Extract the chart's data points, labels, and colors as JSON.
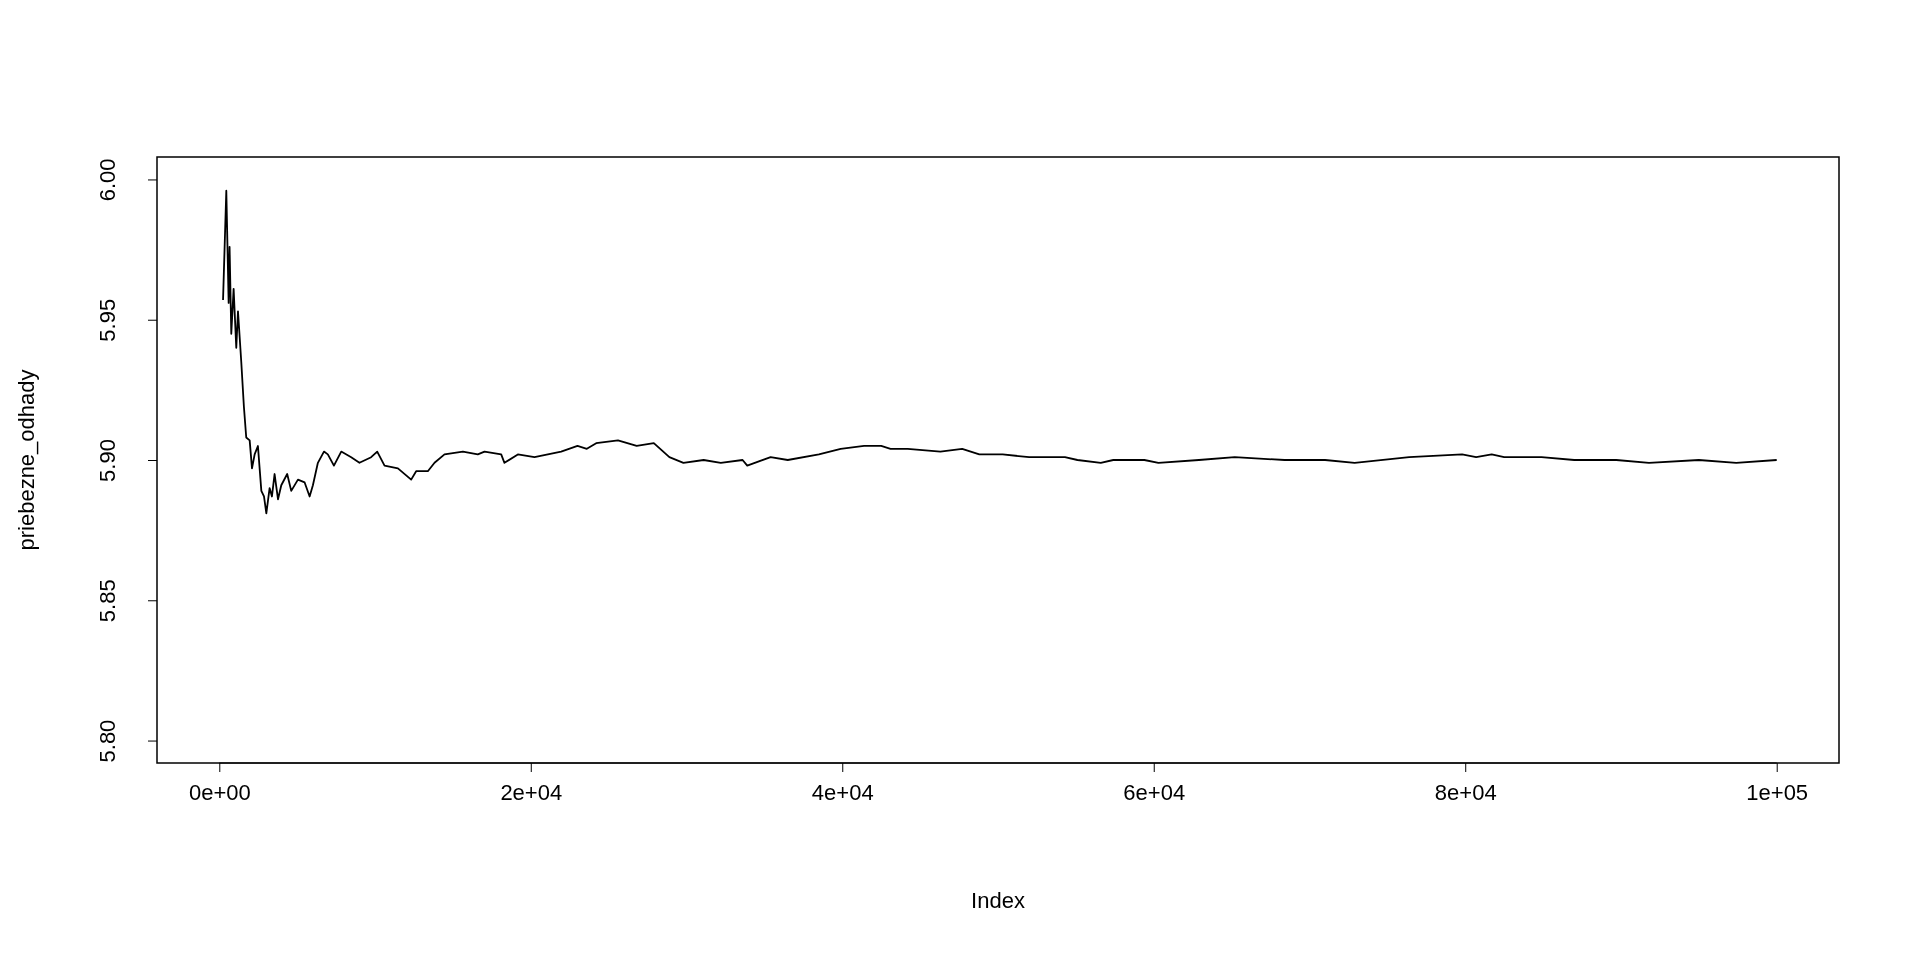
{
  "chart_data": {
    "type": "line",
    "xlabel": "Index",
    "ylabel": "priebezne_odhady",
    "xlim": [
      -4000,
      104000
    ],
    "ylim": [
      5.792,
      6.008
    ],
    "xticks": [
      {
        "value": 0,
        "label": "0e+00"
      },
      {
        "value": 20000,
        "label": "2e+04"
      },
      {
        "value": 40000,
        "label": "4e+04"
      },
      {
        "value": 60000,
        "label": "6e+04"
      },
      {
        "value": 80000,
        "label": "8e+04"
      },
      {
        "value": 100000,
        "label": "1e+05"
      }
    ],
    "yticks": [
      {
        "value": 5.8,
        "label": "5.80"
      },
      {
        "value": 5.85,
        "label": "5.85"
      },
      {
        "value": 5.9,
        "label": "5.90"
      },
      {
        "value": 5.95,
        "label": "5.95"
      },
      {
        "value": 6,
        "label": "6.00"
      }
    ],
    "marker": "none",
    "line_style": "solid",
    "series": [
      {
        "color": "#000000",
        "x": [
          240,
          450,
          600,
          660,
          770,
          920,
          1090,
          1200,
          1410,
          1580,
          1730,
          1950,
          2100,
          2270,
          2480,
          2700,
          2870,
          3020,
          3230,
          3380,
          3550,
          3770,
          3980,
          4360,
          4620,
          5050,
          5480,
          5800,
          6010,
          6330,
          6720,
          6970,
          7360,
          7830,
          8470,
          9000,
          9750,
          10140,
          10610,
          11470,
          12320,
          12640,
          13390,
          13820,
          14460,
          15640,
          16600,
          17030,
          18100,
          18310,
          19170,
          20240,
          21950,
          23000,
          23600,
          24200,
          25600,
          26800,
          27900,
          28900,
          29800,
          31100,
          32200,
          33600,
          33900,
          35400,
          36500,
          38500,
          39900,
          41400,
          42500,
          43100,
          44200,
          46300,
          47700,
          48800,
          50300,
          52000,
          54300,
          55100,
          56600,
          57400,
          59400,
          60300,
          62900,
          65200,
          68400,
          71000,
          72900,
          76400,
          79800,
          80700,
          81700,
          82500,
          84900,
          87000,
          89700,
          91800,
          95000,
          97400,
          100000
        ],
        "values": [
          5.957,
          5.996,
          5.956,
          5.976,
          5.945,
          5.961,
          5.94,
          5.953,
          5.935,
          5.919,
          5.908,
          5.907,
          5.897,
          5.902,
          5.905,
          5.889,
          5.887,
          5.881,
          5.89,
          5.887,
          5.895,
          5.886,
          5.891,
          5.895,
          5.889,
          5.893,
          5.892,
          5.887,
          5.891,
          5.899,
          5.903,
          5.902,
          5.898,
          5.903,
          5.901,
          5.899,
          5.901,
          5.903,
          5.898,
          5.897,
          5.893,
          5.896,
          5.896,
          5.899,
          5.902,
          5.903,
          5.902,
          5.903,
          5.902,
          5.899,
          5.902,
          5.901,
          5.903,
          5.905,
          5.904,
          5.906,
          5.907,
          5.905,
          5.906,
          5.901,
          5.899,
          5.9,
          5.899,
          5.9,
          5.898,
          5.901,
          5.9,
          5.902,
          5.904,
          5.905,
          5.905,
          5.904,
          5.904,
          5.903,
          5.904,
          5.902,
          5.902,
          5.901,
          5.901,
          5.9,
          5.899,
          5.9,
          5.9,
          5.899,
          5.9,
          5.901,
          5.9,
          5.9,
          5.899,
          5.901,
          5.902,
          5.901,
          5.902,
          5.901,
          5.901,
          5.9,
          5.9,
          5.899,
          5.9,
          5.899,
          5.9
        ]
      }
    ]
  }
}
